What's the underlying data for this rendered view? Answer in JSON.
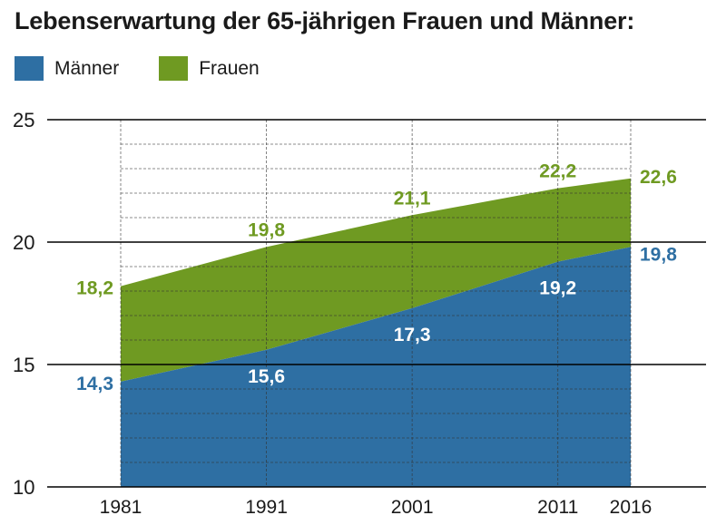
{
  "title": "Lebenserwartung der 65-jährigen Frauen und Männer:",
  "colors": {
    "maenner": "#2e6fa3",
    "frauen": "#6f9a22",
    "grid": "#000000",
    "text": "#1a1a1a"
  },
  "legend": [
    {
      "name": "Männer",
      "color": "#2e6fa3"
    },
    {
      "name": "Frauen",
      "color": "#6f9a22"
    }
  ],
  "chart_data": {
    "type": "area",
    "x": [
      1981,
      1991,
      2001,
      2011,
      2016
    ],
    "x_tick_labels": [
      "1981",
      "1991",
      "2001",
      "2011",
      "2016"
    ],
    "ylim": [
      10,
      25
    ],
    "y_ticks": [
      10,
      15,
      20,
      25
    ],
    "y_tick_labels": [
      "10",
      "15",
      "20",
      "25"
    ],
    "grid": true,
    "legend_position": "top-left",
    "series": [
      {
        "name": "Männer",
        "color": "#2e6fa3",
        "values": [
          14.3,
          15.6,
          17.3,
          19.2,
          19.8
        ],
        "labels": [
          "14,3",
          "15,6",
          "17,3",
          "19,2",
          "19,8"
        ]
      },
      {
        "name": "Frauen",
        "color": "#6f9a22",
        "values": [
          18.2,
          19.8,
          21.1,
          22.2,
          22.6
        ],
        "labels": [
          "18,2",
          "19,8",
          "21,1",
          "22,2",
          "22,6"
        ]
      }
    ]
  }
}
